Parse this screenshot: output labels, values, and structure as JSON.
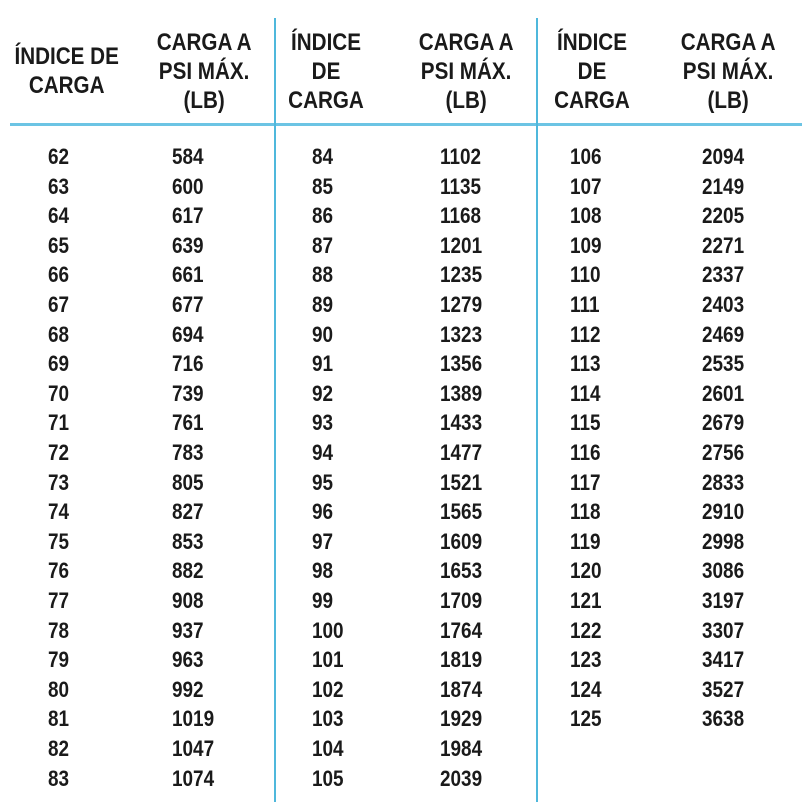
{
  "accent_color": "#4fb8dc",
  "groups": [
    {
      "index_header": "ÍNDICE DE\nCARGA",
      "load_header": "CARGA A\nPSI MÁX.\n(LB)",
      "rows": [
        [
          "62",
          "584"
        ],
        [
          "63",
          "600"
        ],
        [
          "64",
          "617"
        ],
        [
          "65",
          "639"
        ],
        [
          "66",
          "661"
        ],
        [
          "67",
          "677"
        ],
        [
          "68",
          "694"
        ],
        [
          "69",
          "716"
        ],
        [
          "70",
          "739"
        ],
        [
          "71",
          "761"
        ],
        [
          "72",
          "783"
        ],
        [
          "73",
          "805"
        ],
        [
          "74",
          "827"
        ],
        [
          "75",
          "853"
        ],
        [
          "76",
          "882"
        ],
        [
          "77",
          "908"
        ],
        [
          "78",
          "937"
        ],
        [
          "79",
          "963"
        ],
        [
          "80",
          "992"
        ],
        [
          "81",
          "1019"
        ],
        [
          "82",
          "1047"
        ],
        [
          "83",
          "1074"
        ]
      ]
    },
    {
      "index_header": "ÍNDICE\nDE\nCARGA",
      "load_header": "CARGA A\nPSI MÁX.\n(LB)",
      "rows": [
        [
          "84",
          "1102"
        ],
        [
          "85",
          "1135"
        ],
        [
          "86",
          "1168"
        ],
        [
          "87",
          "1201"
        ],
        [
          "88",
          "1235"
        ],
        [
          "89",
          "1279"
        ],
        [
          "90",
          "1323"
        ],
        [
          "91",
          "1356"
        ],
        [
          "92",
          "1389"
        ],
        [
          "93",
          "1433"
        ],
        [
          "94",
          "1477"
        ],
        [
          "95",
          "1521"
        ],
        [
          "96",
          "1565"
        ],
        [
          "97",
          "1609"
        ],
        [
          "98",
          "1653"
        ],
        [
          "99",
          "1709"
        ],
        [
          "100",
          "1764"
        ],
        [
          "101",
          "1819"
        ],
        [
          "102",
          "1874"
        ],
        [
          "103",
          "1929"
        ],
        [
          "104",
          "1984"
        ],
        [
          "105",
          "2039"
        ]
      ]
    },
    {
      "index_header": "ÍNDICE\nDE\nCARGA",
      "load_header": "CARGA A\nPSI MÁX.\n(LB)",
      "rows": [
        [
          "106",
          "2094"
        ],
        [
          "107",
          "2149"
        ],
        [
          "108",
          "2205"
        ],
        [
          "109",
          "2271"
        ],
        [
          "110",
          "2337"
        ],
        [
          "111",
          "2403"
        ],
        [
          "112",
          "2469"
        ],
        [
          "113",
          "2535"
        ],
        [
          "114",
          "2601"
        ],
        [
          "115",
          "2679"
        ],
        [
          "116",
          "2756"
        ],
        [
          "117",
          "2833"
        ],
        [
          "118",
          "2910"
        ],
        [
          "119",
          "2998"
        ],
        [
          "120",
          "3086"
        ],
        [
          "121",
          "3197"
        ],
        [
          "122",
          "3307"
        ],
        [
          "123",
          "3417"
        ],
        [
          "124",
          "3527"
        ],
        [
          "125",
          "3638"
        ]
      ]
    }
  ]
}
